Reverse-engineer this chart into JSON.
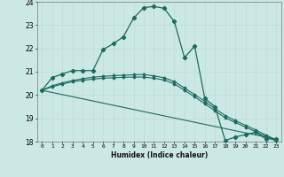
{
  "xlabel": "Humidex (Indice chaleur)",
  "bg_color": "#cce8e4",
  "grid_color": "#bbddcc",
  "line_color": "#1a6b5e",
  "xlim": [
    -0.5,
    23.5
  ],
  "ylim": [
    18,
    24
  ],
  "xticks": [
    0,
    1,
    2,
    3,
    4,
    5,
    6,
    7,
    8,
    9,
    10,
    11,
    12,
    13,
    14,
    15,
    16,
    17,
    18,
    19,
    20,
    21,
    22,
    23
  ],
  "yticks": [
    18,
    19,
    20,
    21,
    22,
    23,
    24
  ],
  "line1_x": [
    0,
    1,
    2,
    3,
    4,
    5,
    6,
    7,
    8,
    9,
    10,
    11,
    12,
    13,
    14,
    15,
    16,
    17,
    18,
    19,
    20,
    21,
    22,
    23
  ],
  "line1_y": [
    20.2,
    20.75,
    20.9,
    21.05,
    21.05,
    21.05,
    21.95,
    22.2,
    22.5,
    23.3,
    23.75,
    23.8,
    23.72,
    23.15,
    21.6,
    22.1,
    19.85,
    19.5,
    18.05,
    18.2,
    18.3,
    18.4,
    18.12,
    18.12
  ],
  "line2_x": [
    0,
    1,
    2,
    3,
    4,
    5,
    6,
    7,
    8,
    9,
    10,
    11,
    12,
    13,
    14,
    15,
    16,
    17,
    18,
    19,
    20,
    21,
    22,
    23
  ],
  "line2_y": [
    20.2,
    20.4,
    20.52,
    20.62,
    20.7,
    20.76,
    20.8,
    20.83,
    20.85,
    20.87,
    20.88,
    20.82,
    20.74,
    20.58,
    20.3,
    20.02,
    19.72,
    19.42,
    19.12,
    18.9,
    18.7,
    18.5,
    18.28,
    18.08
  ],
  "line3_x": [
    0,
    1,
    2,
    3,
    4,
    5,
    6,
    7,
    8,
    9,
    10,
    11,
    12,
    13,
    14,
    15,
    16,
    17,
    18,
    19,
    20,
    21,
    22,
    23
  ],
  "line3_y": [
    20.2,
    20.35,
    20.47,
    20.57,
    20.63,
    20.68,
    20.72,
    20.74,
    20.76,
    20.77,
    20.77,
    20.72,
    20.64,
    20.48,
    20.2,
    19.92,
    19.62,
    19.32,
    19.02,
    18.82,
    18.62,
    18.42,
    18.22,
    18.02
  ],
  "line4_x": [
    0,
    23
  ],
  "line4_y": [
    20.2,
    18.1
  ]
}
